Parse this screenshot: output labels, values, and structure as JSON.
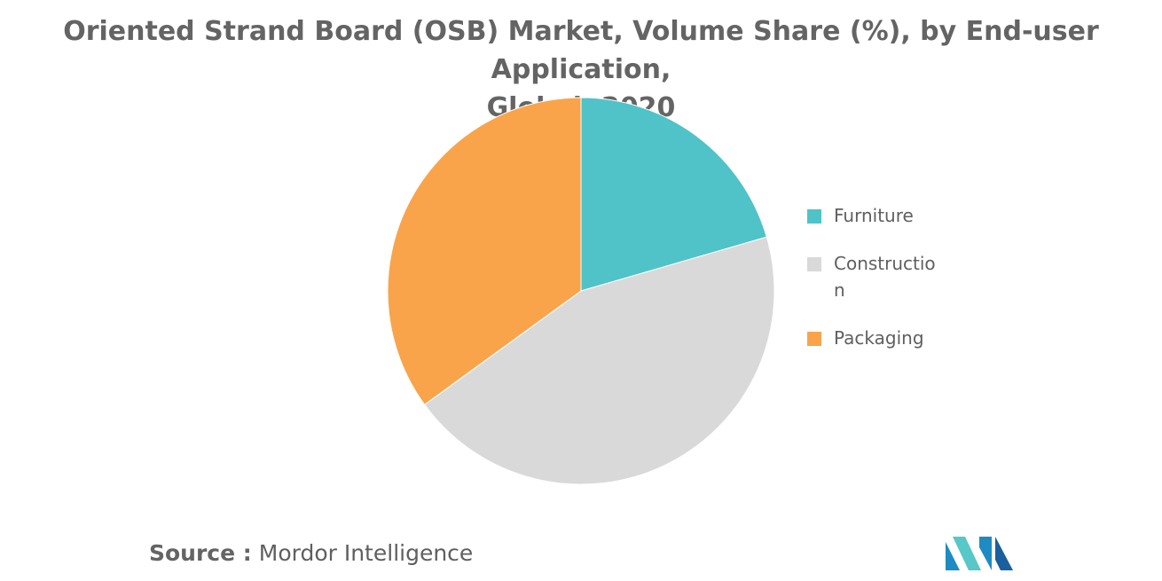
{
  "chart_data": {
    "type": "pie",
    "title_lines": [
      "Oriented Strand Board (OSB) Market, Volume Share (%), by End-user Application,",
      "Global, 2020"
    ],
    "legend_position": "right",
    "slices": [
      {
        "name": "Furniture",
        "value": 20.5,
        "color": "#4fc3c8"
      },
      {
        "name": "Construction",
        "value": 44.5,
        "color": "#d9d9d9"
      },
      {
        "name": "Packaging",
        "value": 35.0,
        "color": "#f9a44a"
      }
    ]
  },
  "legend": {
    "items": [
      {
        "label": "Furniture",
        "color": "#4fc3c8"
      },
      {
        "label": "Construction",
        "color": "#d9d9d9"
      },
      {
        "label": "Packaging",
        "color": "#f9a44a"
      }
    ]
  },
  "source": {
    "label": "Source :",
    "text": "Mordor Intelligence"
  },
  "logo": {
    "icon": "mordor-intelligence-logo-icon",
    "colors": [
      "#1e8bc3",
      "#57c7c7",
      "#1a5f9e"
    ]
  }
}
